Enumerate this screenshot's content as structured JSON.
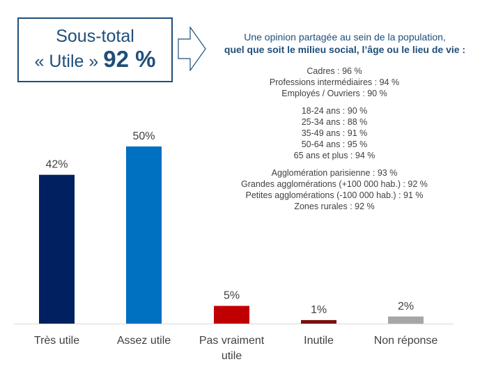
{
  "subtotal": {
    "line1": "Sous-total",
    "line2": "« Utile »",
    "value": "92 %"
  },
  "intro": {
    "line1": "Une opinion partagée au sein de la population,",
    "line2": "quel que soit le milieu social, l’âge ou le lieu de vie :"
  },
  "groups": [
    [
      "Cadres : 96 %",
      "Professions intermédiaires : 94 %",
      "Employés / Ouvriers : 90 %"
    ],
    [
      "18-24 ans : 90 %",
      "25-34 ans : 88 %",
      "35-49 ans : 91 %",
      "50-64 ans : 95 %",
      "65 ans et plus : 94 %"
    ],
    [
      "Agglomération parisienne : 93 %",
      "Grandes agglomérations (+100 000 hab.) : 92 %",
      "Petites agglomérations (-100 000 hab.) : 91 %",
      "Zones rurales : 92 %"
    ]
  ],
  "icons": {
    "arrow": "arrow-right-outline-icon"
  },
  "colors": {
    "accent": "#1f4e79"
  },
  "chart_data": {
    "type": "bar",
    "categories": [
      [
        "Très utile"
      ],
      [
        "Assez utile"
      ],
      [
        "Pas vraiment",
        "utile"
      ],
      [
        "Inutile"
      ],
      [
        "Non réponse"
      ]
    ],
    "values": [
      42,
      50,
      5,
      1,
      2
    ],
    "labels": [
      "42%",
      "50%",
      "5%",
      "1%",
      "2%"
    ],
    "colors": [
      "#002060",
      "#0070c0",
      "#c00000",
      "#7b1010",
      "#a6a6a6"
    ],
    "ylim": [
      0,
      50
    ],
    "grid": false
  }
}
